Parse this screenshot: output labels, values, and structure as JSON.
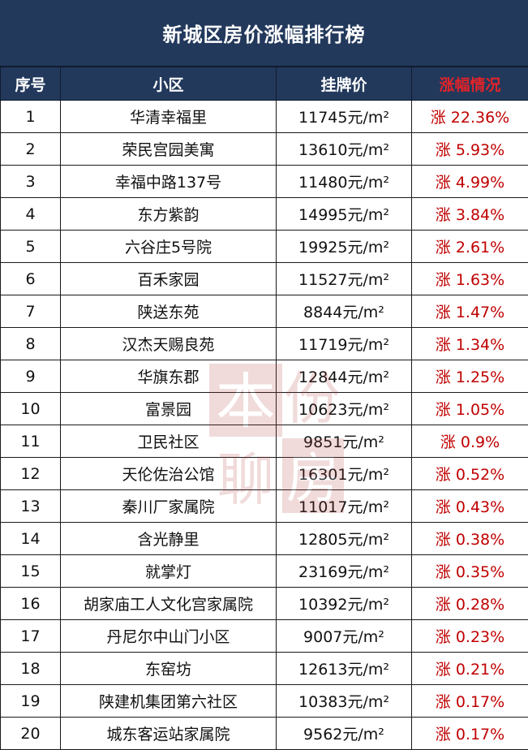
{
  "title": "新城区房价涨幅排行榜",
  "headers": {
    "no": "序号",
    "name": "小区",
    "price": "挂牌价",
    "rise": "涨幅情况"
  },
  "colors": {
    "header_bg": "#22395c",
    "header_text": "#ffffff",
    "rise_header": "#e0242a",
    "rise_text": "#c00000"
  },
  "rows": [
    {
      "no": "1",
      "name": "华清幸福里",
      "price": "11745元/m²",
      "rise": "涨 22.36%"
    },
    {
      "no": "2",
      "name": "荣民宫园美寓",
      "price": "13610元/m²",
      "rise": "涨 5.93%"
    },
    {
      "no": "3",
      "name": "幸福中路137号",
      "price": "11480元/m²",
      "rise": "涨 4.99%"
    },
    {
      "no": "4",
      "name": "东方紫韵",
      "price": "14995元/m²",
      "rise": "涨 3.84%"
    },
    {
      "no": "5",
      "name": "六谷庄5号院",
      "price": "19925元/m²",
      "rise": "涨 2.61%"
    },
    {
      "no": "6",
      "name": "百禾家园",
      "price": "11527元/m²",
      "rise": "涨 1.63%"
    },
    {
      "no": "7",
      "name": "陕送东苑",
      "price": "8844元/m²",
      "rise": "涨 1.47%"
    },
    {
      "no": "8",
      "name": "汉杰天赐良苑",
      "price": "11719元/m²",
      "rise": "涨 1.34%"
    },
    {
      "no": "9",
      "name": "华旗东郡",
      "price": "12844元/m²",
      "rise": "涨 1.25%"
    },
    {
      "no": "10",
      "name": "富景园",
      "price": "10623元/m²",
      "rise": "涨 1.05%"
    },
    {
      "no": "11",
      "name": "卫民社区",
      "price": "9851元/m²",
      "rise": "涨 0.9%"
    },
    {
      "no": "12",
      "name": "天伦佐治公馆",
      "price": "16301元/m²",
      "rise": "涨 0.52%"
    },
    {
      "no": "13",
      "name": "秦川厂家属院",
      "price": "11017元/m²",
      "rise": "涨 0.43%"
    },
    {
      "no": "14",
      "name": "含光静里",
      "price": "12805元/m²",
      "rise": "涨 0.38%"
    },
    {
      "no": "15",
      "name": "就掌灯",
      "price": "23169元/m²",
      "rise": "涨 0.35%"
    },
    {
      "no": "16",
      "name": "胡家庙工人文化宫家属院",
      "price": "10392元/m²",
      "rise": "涨 0.28%"
    },
    {
      "no": "17",
      "name": "丹尼尔中山门小区",
      "price": "9007元/m²",
      "rise": "涨 0.23%"
    },
    {
      "no": "18",
      "name": "东窑坊",
      "price": "12613元/m²",
      "rise": "涨 0.21%"
    },
    {
      "no": "19",
      "name": "陕建机集团第六社区",
      "price": "10383元/m²",
      "rise": "涨 0.17%"
    },
    {
      "no": "20",
      "name": "城东客运站家属院",
      "price": "9562元/m²",
      "rise": "涨 0.17%"
    }
  ],
  "watermark": {
    "text": "本份聊房"
  }
}
